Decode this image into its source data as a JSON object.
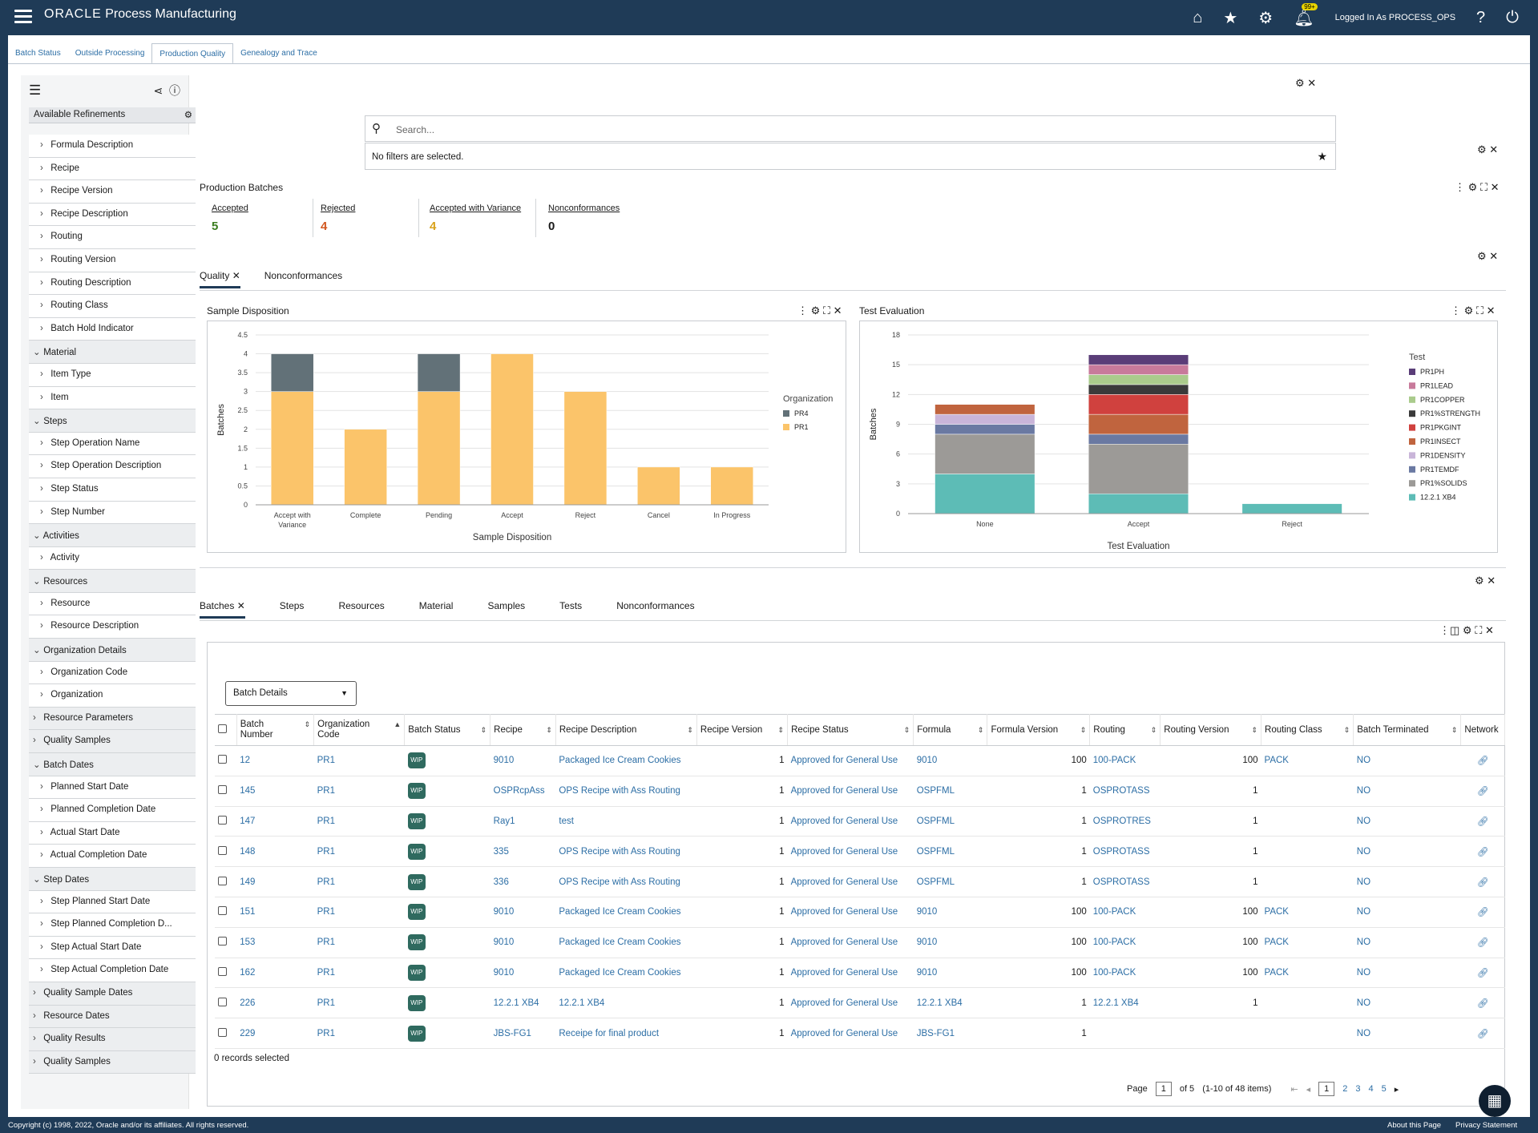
{
  "header": {
    "brand": "ORACLE",
    "app_name": "Process Manufacturing",
    "notification_badge": "99+",
    "logged_in": "Logged In As PROCESS_OPS"
  },
  "page_tabs": [
    "Batch Status",
    "Outside Processing",
    "Production Quality",
    "Genealogy and Trace"
  ],
  "sidebar": {
    "refinements_title": "Available Refinements",
    "items": [
      {
        "label": "Formula Description",
        "type": "item"
      },
      {
        "label": "Recipe",
        "type": "item"
      },
      {
        "label": "Recipe Version",
        "type": "item"
      },
      {
        "label": "Recipe Description",
        "type": "item"
      },
      {
        "label": "Routing",
        "type": "item"
      },
      {
        "label": "Routing Version",
        "type": "item"
      },
      {
        "label": "Routing Description",
        "type": "item"
      },
      {
        "label": "Routing Class",
        "type": "item"
      },
      {
        "label": "Batch Hold Indicator",
        "type": "item"
      },
      {
        "label": "Material",
        "type": "section"
      },
      {
        "label": "Item Type",
        "type": "item"
      },
      {
        "label": "Item",
        "type": "item"
      },
      {
        "label": "Steps",
        "type": "section"
      },
      {
        "label": "Step Operation Name",
        "type": "item"
      },
      {
        "label": "Step Operation Description",
        "type": "item"
      },
      {
        "label": "Step Status",
        "type": "item"
      },
      {
        "label": "Step Number",
        "type": "item"
      },
      {
        "label": "Activities",
        "type": "section"
      },
      {
        "label": "Activity",
        "type": "item"
      },
      {
        "label": "Resources",
        "type": "section"
      },
      {
        "label": "Resource",
        "type": "item"
      },
      {
        "label": "Resource Description",
        "type": "item"
      },
      {
        "label": "Organization Details",
        "type": "section"
      },
      {
        "label": "Organization Code",
        "type": "item"
      },
      {
        "label": "Organization",
        "type": "item"
      },
      {
        "label": "Resource Parameters",
        "type": "collapsed"
      },
      {
        "label": "Quality Samples",
        "type": "collapsed"
      },
      {
        "label": "Batch Dates",
        "type": "section"
      },
      {
        "label": "Planned Start Date",
        "type": "item"
      },
      {
        "label": "Planned Completion Date",
        "type": "item"
      },
      {
        "label": "Actual Start Date",
        "type": "item"
      },
      {
        "label": "Actual Completion Date",
        "type": "item"
      },
      {
        "label": "Step Dates",
        "type": "section"
      },
      {
        "label": "Step Planned Start Date",
        "type": "item"
      },
      {
        "label": "Step Planned Completion D...",
        "type": "item"
      },
      {
        "label": "Step Actual Start Date",
        "type": "item"
      },
      {
        "label": "Step Actual Completion Date",
        "type": "item"
      },
      {
        "label": "Quality Sample Dates",
        "type": "collapsed"
      },
      {
        "label": "Resource Dates",
        "type": "collapsed"
      },
      {
        "label": "Quality Results",
        "type": "collapsed"
      },
      {
        "label": "Quality Samples",
        "type": "collapsed"
      }
    ]
  },
  "search": {
    "placeholder": "Search..."
  },
  "filters_text": "No filters are selected.",
  "production_batches": {
    "title": "Production Batches",
    "kpis": [
      {
        "label": "Accepted",
        "value": "5",
        "color": "#3a7d1f"
      },
      {
        "label": "Rejected",
        "value": "4",
        "color": "#d2571f"
      },
      {
        "label": "Accepted with Variance",
        "value": "4",
        "color": "#d9a21b"
      },
      {
        "label": "Nonconformances",
        "value": "0",
        "color": "#1a1a1a"
      }
    ]
  },
  "analysis_tabs": [
    "Quality",
    "Nonconformances"
  ],
  "chart_data": [
    {
      "type": "bar",
      "title": "Sample Disposition",
      "xlabel": "Sample Disposition",
      "ylabel": "Batches",
      "ylim": [
        0,
        4.5
      ],
      "yticks": [
        "0",
        "0.5",
        "1",
        "1.5",
        "2",
        "2.5",
        "3",
        "3.5",
        "4",
        "4.5"
      ],
      "categories": [
        "Accept with Variance",
        "Complete",
        "Pending",
        "Accept",
        "Reject",
        "Cancel",
        "In Progress"
      ],
      "legend_title": "Organization",
      "legend_position": "right",
      "series": [
        {
          "name": "PR1",
          "color": "#fbc46a",
          "values": [
            3,
            2,
            3,
            4,
            3,
            1,
            1
          ]
        },
        {
          "name": "PR4",
          "color": "#627178",
          "values": [
            1,
            0,
            1,
            0,
            0,
            0,
            0
          ]
        }
      ]
    },
    {
      "type": "bar",
      "title": "Test Evaluation",
      "xlabel": "Test Evaluation",
      "ylabel": "Batches",
      "ylim": [
        0,
        18
      ],
      "yticks": [
        "0",
        "3",
        "6",
        "9",
        "12",
        "15",
        "18"
      ],
      "categories": [
        "None",
        "Accept",
        "Reject"
      ],
      "legend_title": "Test",
      "legend_position": "right",
      "series": [
        {
          "name": "12.2.1 XB4",
          "color": "#5dbcb6",
          "values": [
            4,
            2,
            1
          ]
        },
        {
          "name": "PR1%SOLIDS",
          "color": "#9c9a97",
          "values": [
            4,
            5,
            0
          ]
        },
        {
          "name": "PR1TEMDF",
          "color": "#6a79a2",
          "values": [
            1,
            1,
            0
          ]
        },
        {
          "name": "PR1DENSITY",
          "color": "#c9b5d9",
          "values": [
            1,
            0,
            0
          ]
        },
        {
          "name": "PR1INSECT",
          "color": "#c0643e",
          "values": [
            1,
            2,
            0
          ]
        },
        {
          "name": "PR1PKGINT",
          "color": "#d0413e",
          "values": [
            0,
            2,
            0
          ]
        },
        {
          "name": "PR1%STRENGTH",
          "color": "#3a3a3a",
          "values": [
            0,
            1,
            0
          ]
        },
        {
          "name": "PR1COPPER",
          "color": "#aacb8c",
          "values": [
            0,
            1,
            0
          ]
        },
        {
          "name": "PR1LEAD",
          "color": "#c87a9b",
          "values": [
            0,
            1,
            0
          ]
        },
        {
          "name": "PR1PH",
          "color": "#5a3d78",
          "values": [
            0,
            1,
            0
          ]
        }
      ]
    }
  ],
  "detail_tabs": [
    "Batches",
    "Steps",
    "Resources",
    "Material",
    "Samples",
    "Tests",
    "Nonconformances"
  ],
  "view_select": "Batch Details",
  "table": {
    "columns": [
      "Batch Number",
      "Organization Code",
      "Batch Status",
      "Recipe",
      "Recipe Description",
      "Recipe Version",
      "Recipe Status",
      "Formula",
      "Formula Version",
      "Routing",
      "Routing Version",
      "Routing Class",
      "Batch Terminated",
      "Network"
    ],
    "rows": [
      [
        "12",
        "PR1",
        "WIP",
        "9010",
        "Packaged Ice Cream Cookies",
        "1",
        "Approved for General Use",
        "9010",
        "100",
        "100-PACK",
        "100",
        "PACK",
        "NO"
      ],
      [
        "145",
        "PR1",
        "WIP",
        "OSPRcpAss",
        "OPS Recipe with Ass Routing",
        "1",
        "Approved for General Use",
        "OSPFML",
        "1",
        "OSPROTASS",
        "1",
        "",
        "NO"
      ],
      [
        "147",
        "PR1",
        "WIP",
        "Ray1",
        "test",
        "1",
        "Approved for General Use",
        "OSPFML",
        "1",
        "OSPROTRES",
        "1",
        "",
        "NO"
      ],
      [
        "148",
        "PR1",
        "WIP",
        "335",
        "OPS Recipe with Ass Routing",
        "1",
        "Approved for General Use",
        "OSPFML",
        "1",
        "OSPROTASS",
        "1",
        "",
        "NO"
      ],
      [
        "149",
        "PR1",
        "WIP",
        "336",
        "OPS Recipe with Ass Routing",
        "1",
        "Approved for General Use",
        "OSPFML",
        "1",
        "OSPROTASS",
        "1",
        "",
        "NO"
      ],
      [
        "151",
        "PR1",
        "WIP",
        "9010",
        "Packaged Ice Cream Cookies",
        "1",
        "Approved for General Use",
        "9010",
        "100",
        "100-PACK",
        "100",
        "PACK",
        "NO"
      ],
      [
        "153",
        "PR1",
        "WIP",
        "9010",
        "Packaged Ice Cream Cookies",
        "1",
        "Approved for General Use",
        "9010",
        "100",
        "100-PACK",
        "100",
        "PACK",
        "NO"
      ],
      [
        "162",
        "PR1",
        "WIP",
        "9010",
        "Packaged Ice Cream Cookies",
        "1",
        "Approved for General Use",
        "9010",
        "100",
        "100-PACK",
        "100",
        "PACK",
        "NO"
      ],
      [
        "226",
        "PR1",
        "WIP",
        "12.2.1 XB4",
        "12.2.1 XB4",
        "1",
        "Approved for General Use",
        "12.2.1 XB4",
        "1",
        "12.2.1 XB4",
        "1",
        "",
        "NO"
      ],
      [
        "229",
        "PR1",
        "WIP",
        "JBS-FG1",
        "Receipe for final product",
        "1",
        "Approved for General Use",
        "JBS-FG1",
        "1",
        "",
        "",
        "",
        "NO"
      ]
    ]
  },
  "records_selected": "0 records selected",
  "pagination": {
    "page_label": "Page",
    "current": "1",
    "of": "of 5",
    "range": "(1-10 of 48 items)",
    "pages": [
      "1",
      "2",
      "3",
      "4",
      "5"
    ]
  },
  "footer": {
    "copyright": "Copyright (c) 1998, 2022, Oracle and/or its affiliates. All rights reserved.",
    "about": "About this Page",
    "privacy": "Privacy Statement"
  }
}
